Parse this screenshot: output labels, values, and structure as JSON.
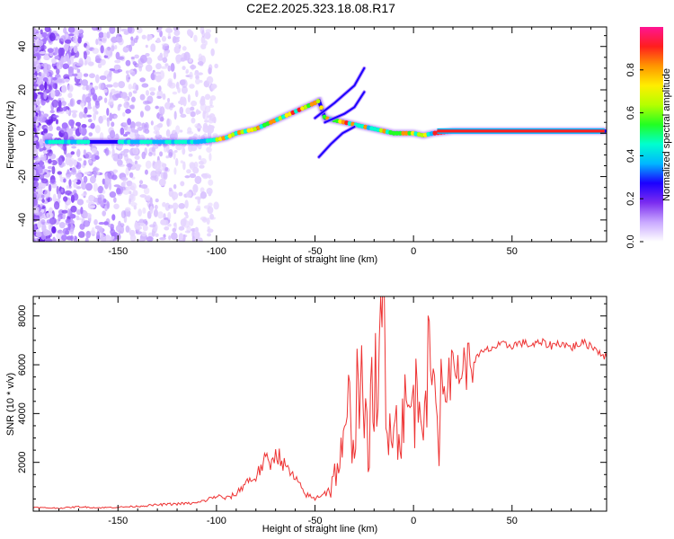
{
  "figure_title": "C2E2.2025.323.18.08.R17",
  "chart_data": [
    {
      "type": "heatmap",
      "title": "C2E2.2025.323.18.08.R17",
      "xlabel": "Height of straight line (km)",
      "ylabel": "Frequency (Hz)",
      "xlim": [
        -193,
        98
      ],
      "ylim": [
        -50,
        49
      ],
      "xticks": [
        -150,
        -100,
        -50,
        0,
        50
      ],
      "yticks": [
        -40,
        -20,
        0,
        20,
        40
      ],
      "colorbar": {
        "label": "Normalized spectral amplitude",
        "range": [
          0.0,
          1.0
        ],
        "ticks": [
          0.0,
          0.2,
          0.4,
          0.6,
          0.8
        ]
      },
      "ridge_trace": {
        "x": [
          -186,
          -170,
          -160,
          -150,
          -140,
          -130,
          -120,
          -110,
          -100,
          -95,
          -90,
          -85,
          -80,
          -75,
          -70,
          -65,
          -60,
          -55,
          -50,
          -48,
          -45,
          -40,
          -35,
          -30,
          -25,
          -20,
          -15,
          -10,
          -5,
          0,
          5,
          10,
          20,
          40,
          60,
          80,
          97
        ],
        "y": [
          -4,
          -4,
          -4,
          -4,
          -4,
          -4,
          -4,
          -4,
          -3,
          -2,
          0,
          1,
          2,
          4,
          6,
          8,
          10,
          12,
          14,
          15,
          7,
          6,
          5,
          4,
          3,
          2,
          1,
          0,
          0,
          0,
          -1,
          0,
          1,
          1,
          1,
          1,
          1
        ]
      },
      "branches": [
        {
          "x": [
            -50,
            -40,
            -30,
            -25
          ],
          "y": [
            7,
            14,
            22,
            30
          ]
        },
        {
          "x": [
            -45,
            -35,
            -30,
            -25
          ],
          "y": [
            5,
            9,
            12,
            19
          ]
        },
        {
          "x": [
            -48,
            -42,
            -36,
            -30
          ],
          "y": [
            -11,
            -5,
            0,
            3
          ]
        }
      ]
    },
    {
      "type": "line",
      "xlabel": "Height of straight line (km)",
      "ylabel": "SNR (10 * v/v)",
      "xlim": [
        -193,
        98
      ],
      "ylim": [
        0,
        8800
      ],
      "xticks": [
        -150,
        -100,
        -50,
        0,
        50
      ],
      "yticks": [
        2000,
        4000,
        6000,
        8000
      ],
      "series": [
        {
          "name": "SNR",
          "color": "#ee3333",
          "x": [
            -193,
            -180,
            -170,
            -160,
            -150,
            -140,
            -130,
            -120,
            -110,
            -105,
            -100,
            -95,
            -90,
            -85,
            -80,
            -78,
            -75,
            -72,
            -70,
            -65,
            -62,
            -60,
            -55,
            -50,
            -45,
            -42,
            -40,
            -38,
            -35,
            -33,
            -30,
            -28,
            -27,
            -25,
            -23,
            -20,
            -18,
            -16,
            -15,
            -14,
            -12,
            -10,
            -8,
            -5,
            -3,
            0,
            3,
            5,
            8,
            10,
            12,
            13,
            14,
            15,
            18,
            20,
            25,
            30,
            35,
            40,
            45,
            50,
            55,
            60,
            65,
            70,
            75,
            80,
            85,
            90,
            95,
            98
          ],
          "y": [
            150,
            120,
            180,
            140,
            160,
            200,
            260,
            300,
            330,
            460,
            620,
            520,
            700,
            1200,
            1400,
            1700,
            2100,
            1900,
            2500,
            1800,
            1500,
            1300,
            700,
            500,
            800,
            900,
            1500,
            2000,
            2600,
            4200,
            3000,
            6000,
            5200,
            3800,
            2500,
            5700,
            4500,
            7200,
            8800,
            3200,
            4600,
            4000,
            3100,
            4200,
            3900,
            4500,
            4800,
            5100,
            5700,
            5000,
            4700,
            1700,
            5900,
            5300,
            5400,
            5800,
            5900,
            6100,
            6500,
            6700,
            6800,
            6800,
            6900,
            6800,
            6900,
            6800,
            6900,
            6700,
            6900,
            6800,
            6500,
            6300
          ]
        }
      ]
    },
    {
      "type": "colorbar",
      "label": "Normalized spectral amplitude",
      "range": [
        0.0,
        1.0
      ],
      "tick_labels": [
        "0.0",
        "0.2",
        "0.4",
        "0.6",
        "0.8"
      ],
      "colors": [
        "#ffffff",
        "#c9a8ff",
        "#7b2cf0",
        "#1b00ff",
        "#00b7ff",
        "#00ffcf",
        "#22ff22",
        "#b4ff00",
        "#ffee00",
        "#ff9600",
        "#ff1e1e",
        "#ff1493"
      ]
    }
  ]
}
